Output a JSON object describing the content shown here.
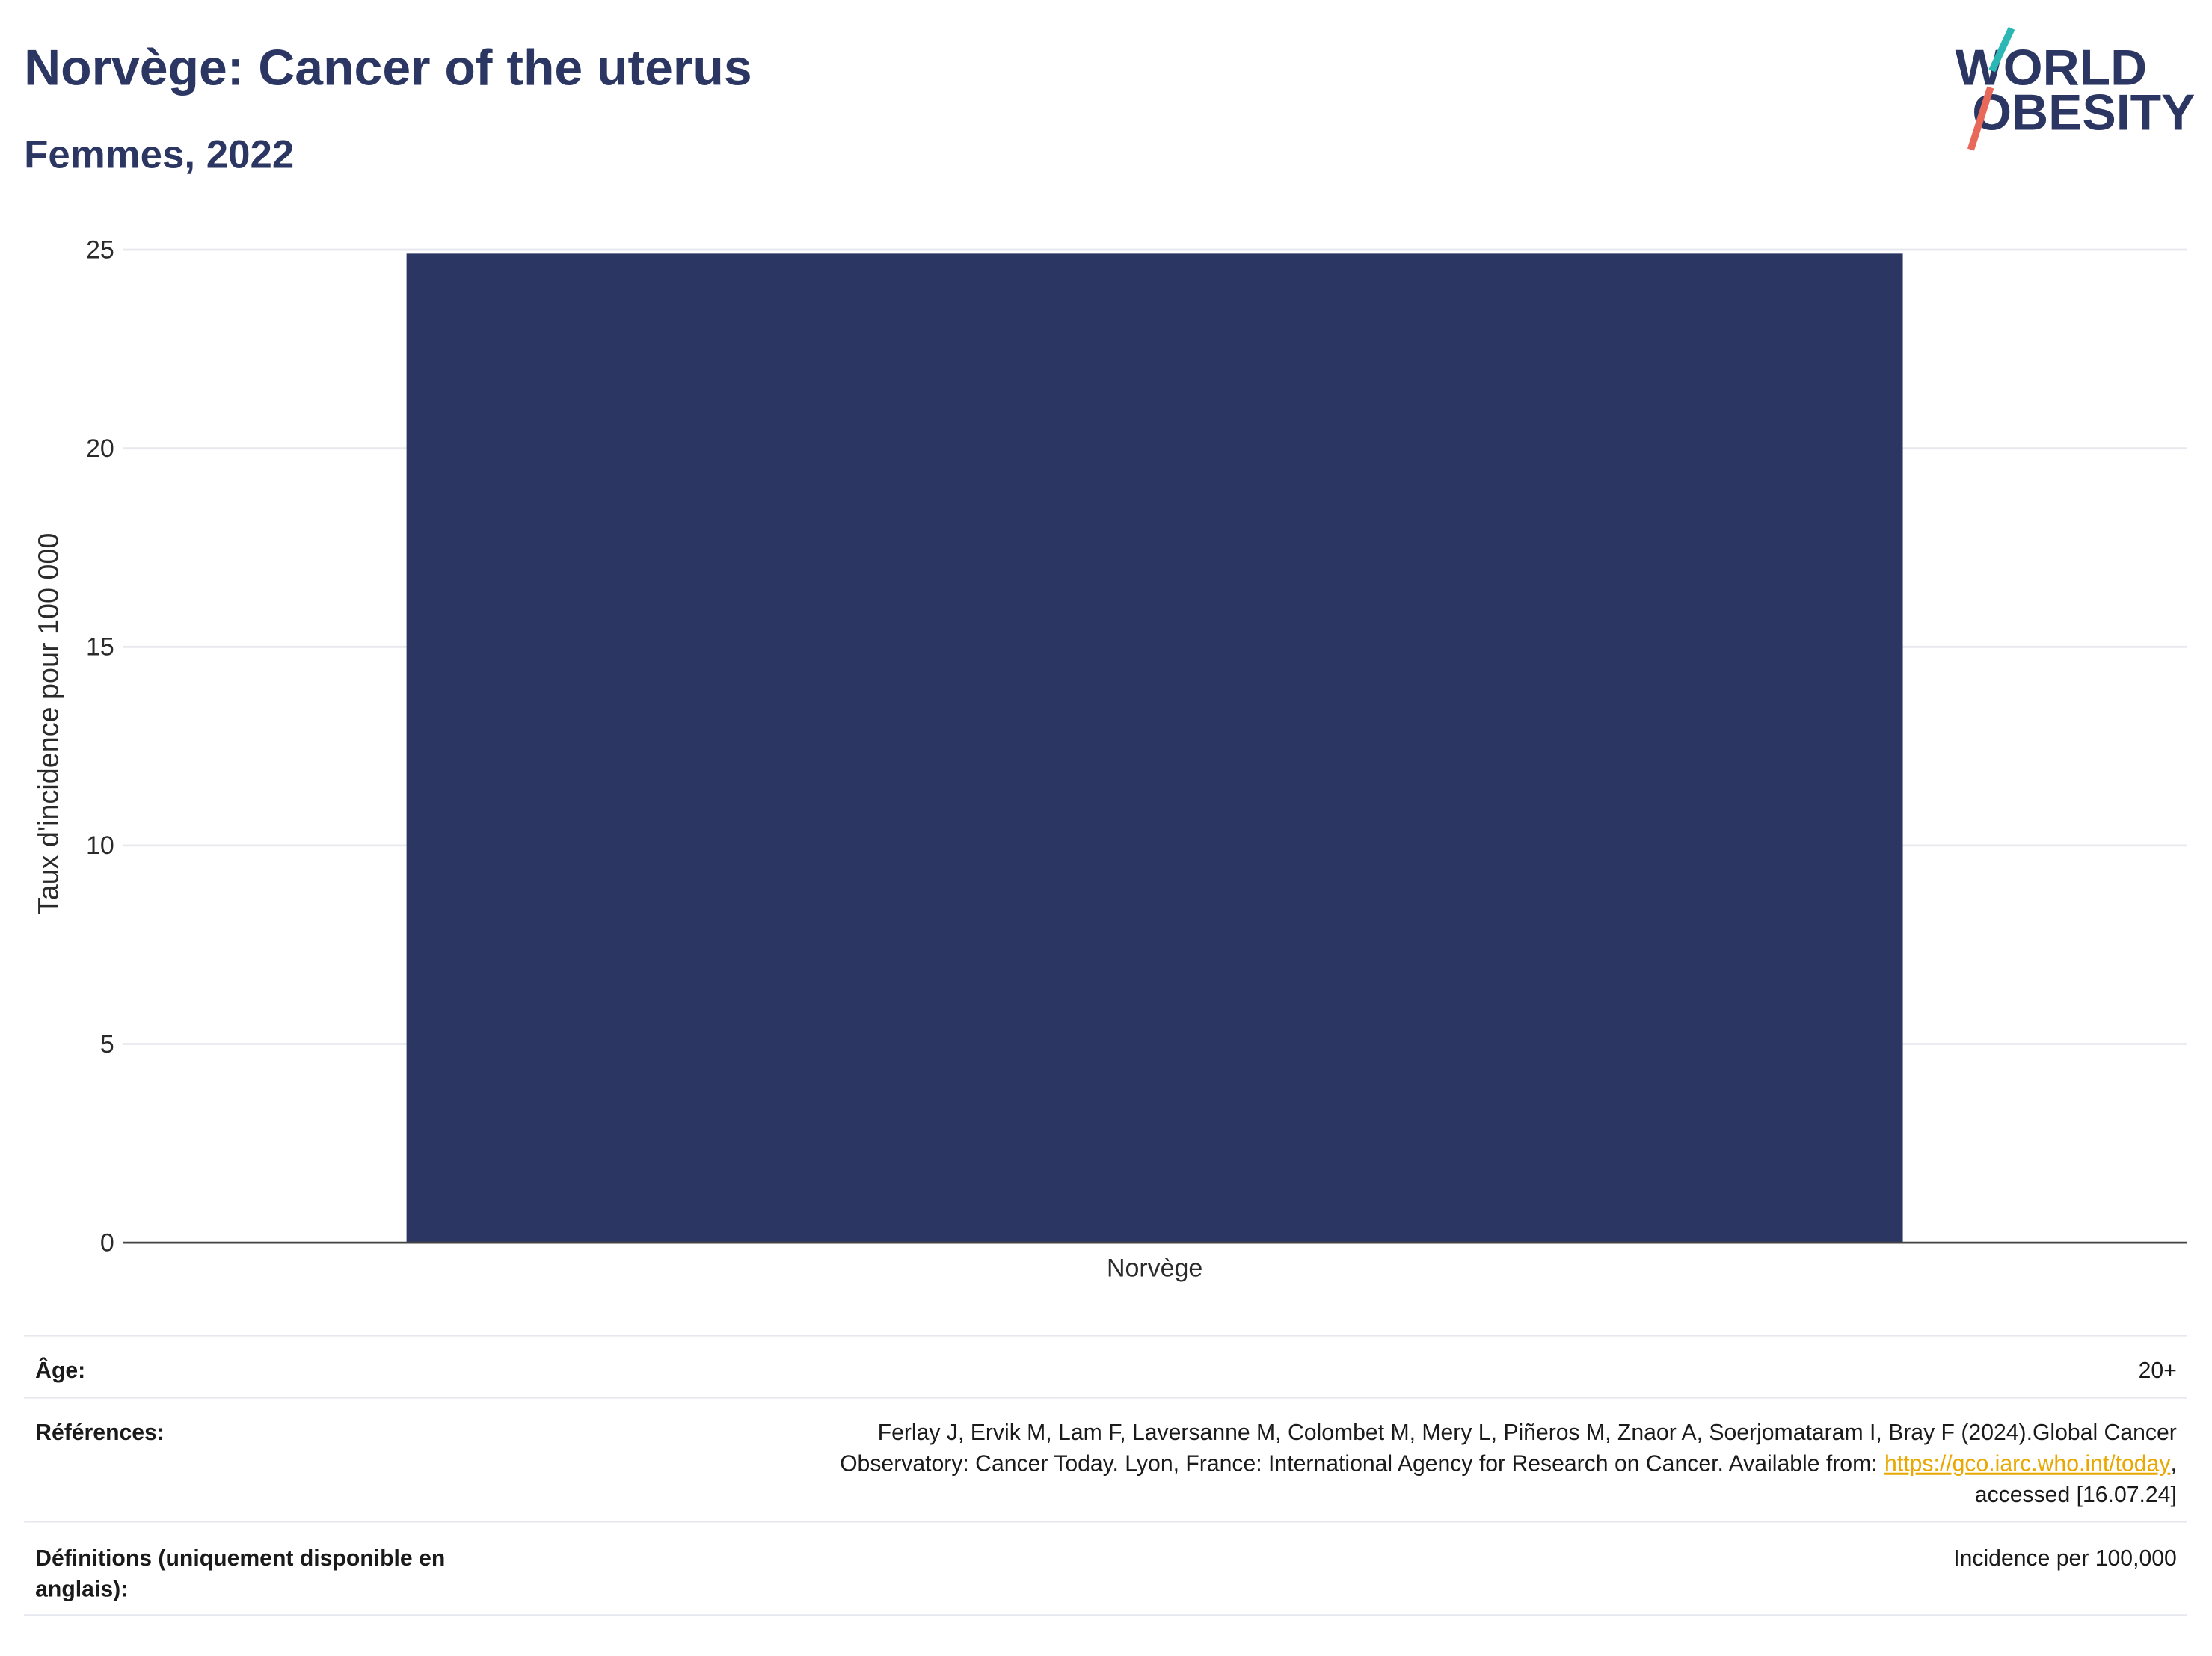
{
  "chart_data": {
    "type": "bar",
    "title": "Norvège: Cancer of the uterus",
    "subtitle": "Femmes, 2022",
    "y_label": "Taux d'incidence pour 100 000",
    "categories": [
      "Norvège"
    ],
    "values": [
      24.9
    ],
    "color": "#2b3663",
    "ylim": [
      0,
      25
    ],
    "yticks": [
      0,
      5,
      10,
      15,
      20,
      25
    ],
    "grid": true
  },
  "logo": {
    "line1": "WORLD",
    "line2": "OBESITY"
  },
  "info_table": {
    "age": {
      "label": "Âge:",
      "value": "20+"
    },
    "references": {
      "label": "Références:",
      "line1": "Ferlay J, Ervik M, Lam F, Laversanne M, Colombet M, Mery L, Piñeros M, Znaor A, Soerjomataram I, Bray F (2024).Global Cancer",
      "line2": "Observatory: Cancer Today. Lyon, France: International Agency for Research on Cancer. Available from:",
      "link": "https://gco.iarc.who.int/today",
      "link_after": ",",
      "line3": "accessed [16.07.24]"
    },
    "definitions": {
      "label_line1": "Définitions (uniquement disponible en",
      "label_line2": "anglais):",
      "value": "Incidence per 100,000"
    }
  }
}
